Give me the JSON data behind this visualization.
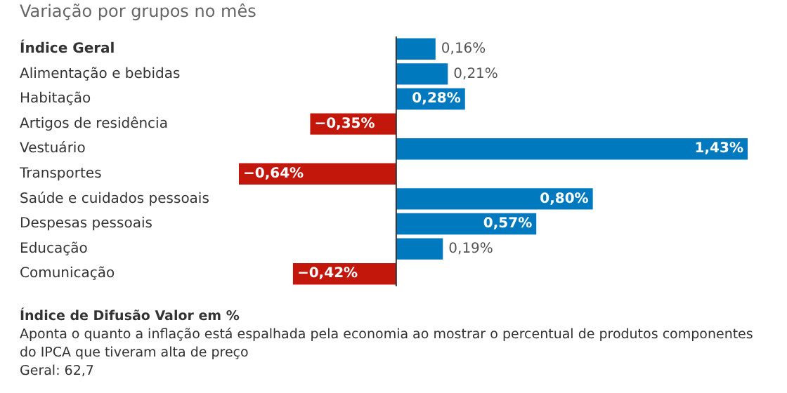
{
  "chart_data": {
    "type": "bar",
    "orientation": "horizontal",
    "title": "Variação por grupos no mês",
    "categories": [
      "Índice Geral",
      "Alimentação e bebidas",
      "Habitação",
      "Artigos de residência",
      "Vestuário",
      "Transportes",
      "Saúde e cuidados pessoais",
      "Despesas pessoais",
      "Educação",
      "Comunicação"
    ],
    "values": [
      0.16,
      0.21,
      0.28,
      -0.35,
      1.43,
      -0.64,
      0.8,
      0.57,
      0.19,
      -0.42
    ],
    "colors": [
      "#0079bf",
      "#0079bf",
      "#0079bf",
      "#c4170c",
      "#0079bf",
      "#c4170c",
      "#0079bf",
      "#0079bf",
      "#0079bf",
      "#c4170c"
    ],
    "value_labels": [
      "0,16%",
      "0,21%",
      "0,28%",
      "−0,35%",
      "1,43%",
      "−0,64%",
      "0,80%",
      "0,57%",
      "0,19%",
      "−0,42%"
    ],
    "xlim": [
      -0.64,
      1.43
    ],
    "tick_labels": "y",
    "grid": false,
    "legend": false,
    "annotations": [
      "Índice de Difusão Valor em %",
      "Aponta o quanto a inflação está espalhada pela economia ao mostrar o percentual de produtos componentes do IPCA que tiveram alta de preço",
      "Geral: 62,7"
    ]
  }
}
